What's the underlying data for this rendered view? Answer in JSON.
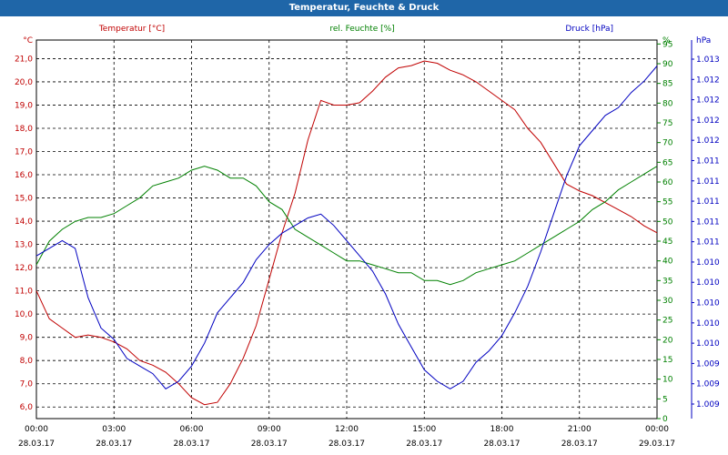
{
  "window": {
    "title": "Temperatur, Feuchte & Druck"
  },
  "chart_data": {
    "type": "line",
    "title": "Temperatur, Feuchte & Druck",
    "grid": true,
    "legend": "none",
    "x_ticks": [
      {
        "time": "00:00",
        "date": "28.03.17"
      },
      {
        "time": "03:00",
        "date": "28.03.17"
      },
      {
        "time": "06:00",
        "date": "28.03.17"
      },
      {
        "time": "09:00",
        "date": "28.03.17"
      },
      {
        "time": "12:00",
        "date": "28.03.17"
      },
      {
        "time": "15:00",
        "date": "28.03.17"
      },
      {
        "time": "18:00",
        "date": "28.03.17"
      },
      {
        "time": "21:00",
        "date": "28.03.17"
      },
      {
        "time": "00:00",
        "date": "29.03.17"
      }
    ],
    "xlim_hours": [
      0,
      24
    ],
    "axes": {
      "left": {
        "unit": "°C",
        "color": "#c00000",
        "ylim": [
          5.5,
          21.8
        ],
        "ticks": [
          "6,0",
          "7,0",
          "8,0",
          "9,0",
          "10,0",
          "11,0",
          "12,0",
          "13,0",
          "14,0",
          "15,0",
          "16,0",
          "17,0",
          "18,0",
          "19,0",
          "20,0",
          "21,0"
        ]
      },
      "right1": {
        "unit": "%",
        "color": "#008000",
        "ylim": [
          0,
          96
        ],
        "ticks": [
          "0",
          "5",
          "10",
          "15",
          "20",
          "25",
          "30",
          "35",
          "40",
          "45",
          "50",
          "55",
          "60",
          "65",
          "70",
          "75",
          "80",
          "85",
          "90",
          "95"
        ]
      },
      "right2": {
        "unit": "hPa",
        "color": "#0000c0",
        "ticks": [
          "1.013",
          "1.012",
          "1.012",
          "1.012",
          "1.012",
          "1.011",
          "1.011",
          "1.011",
          "1.011",
          "1.011",
          "1.010",
          "1.010",
          "1.010",
          "1.010",
          "1.010",
          "1.009",
          "1.009",
          "1.009"
        ]
      }
    },
    "series": [
      {
        "name": "Temperatur [°C]",
        "color": "#c00000",
        "axis": "left",
        "x": [
          0,
          0.5,
          1,
          1.5,
          2,
          2.5,
          3,
          3.5,
          4,
          4.5,
          5,
          5.5,
          6,
          6.5,
          7,
          7.5,
          8,
          8.5,
          9,
          9.5,
          10,
          10.5,
          11,
          11.5,
          12,
          12.5,
          13,
          13.5,
          14,
          14.5,
          15,
          15.5,
          16,
          16.5,
          17,
          17.5,
          18,
          18.5,
          19,
          19.5,
          20,
          20.5,
          21,
          21.5,
          22,
          22.5,
          23,
          23.5,
          24
        ],
        "values": [
          11.0,
          9.8,
          9.4,
          9.0,
          9.1,
          9.0,
          8.8,
          8.5,
          8.0,
          7.8,
          7.5,
          7.0,
          6.4,
          6.1,
          6.2,
          7.0,
          8.1,
          9.5,
          11.5,
          13.5,
          15.2,
          17.5,
          19.2,
          19.0,
          19.0,
          19.1,
          19.6,
          20.2,
          20.6,
          20.7,
          20.9,
          20.8,
          20.5,
          20.3,
          20.0,
          19.6,
          19.2,
          18.8,
          18.0,
          17.4,
          16.5,
          15.6,
          15.3,
          15.1,
          14.8,
          14.5,
          14.2,
          13.8,
          13.5
        ]
      },
      {
        "name": "rel. Feuchte [%]",
        "color": "#008000",
        "axis": "right1",
        "x": [
          0,
          0.5,
          1,
          1.5,
          2,
          2.5,
          3,
          3.5,
          4,
          4.5,
          5,
          5.5,
          6,
          6.5,
          7,
          7.5,
          8,
          8.5,
          9,
          9.5,
          10,
          10.5,
          11,
          11.5,
          12,
          12.5,
          13,
          13.5,
          14,
          14.5,
          15,
          15.5,
          16,
          16.5,
          17,
          17.5,
          18,
          18.5,
          19,
          19.5,
          20,
          20.5,
          21,
          21.5,
          22,
          22.5,
          23,
          23.5,
          24
        ],
        "values": [
          39,
          45,
          48,
          50,
          51,
          51,
          52,
          54,
          56,
          59,
          60,
          61,
          63,
          64,
          63,
          61,
          61,
          59,
          55,
          53,
          48,
          46,
          44,
          42,
          40,
          40,
          39,
          38,
          37,
          37,
          35,
          35,
          34,
          35,
          37,
          38,
          39,
          40,
          42,
          44,
          46,
          48,
          50,
          53,
          55,
          58,
          60,
          62,
          64
        ]
      },
      {
        "name": "Druck [hPa]",
        "color": "#0000c0",
        "axis": "right2",
        "x": [
          0,
          0.5,
          1,
          1.5,
          2,
          2.5,
          3,
          3.5,
          4,
          4.5,
          5,
          5.5,
          6,
          6.5,
          7,
          7.5,
          8,
          8.5,
          9,
          9.5,
          10,
          10.5,
          11,
          11.5,
          12,
          12.5,
          13,
          13.5,
          14,
          14.5,
          15,
          15.5,
          16,
          16.5,
          17,
          17.5,
          18,
          18.5,
          19,
          19.5,
          20,
          20.5,
          21,
          21.5,
          22,
          22.5,
          23,
          23.5,
          24
        ],
        "values": [
          1010.95,
          1011.05,
          1011.15,
          1011.05,
          1010.4,
          1010.0,
          1009.85,
          1009.6,
          1009.5,
          1009.4,
          1009.2,
          1009.3,
          1009.5,
          1009.8,
          1010.2,
          1010.4,
          1010.6,
          1010.9,
          1011.1,
          1011.25,
          1011.35,
          1011.45,
          1011.5,
          1011.35,
          1011.15,
          1010.95,
          1010.75,
          1010.45,
          1010.05,
          1009.75,
          1009.45,
          1009.3,
          1009.2,
          1009.3,
          1009.55,
          1009.7,
          1009.9,
          1010.2,
          1010.55,
          1011.0,
          1011.5,
          1012.0,
          1012.4,
          1012.6,
          1012.8,
          1012.9,
          1013.1,
          1013.25,
          1013.45
        ]
      }
    ]
  }
}
